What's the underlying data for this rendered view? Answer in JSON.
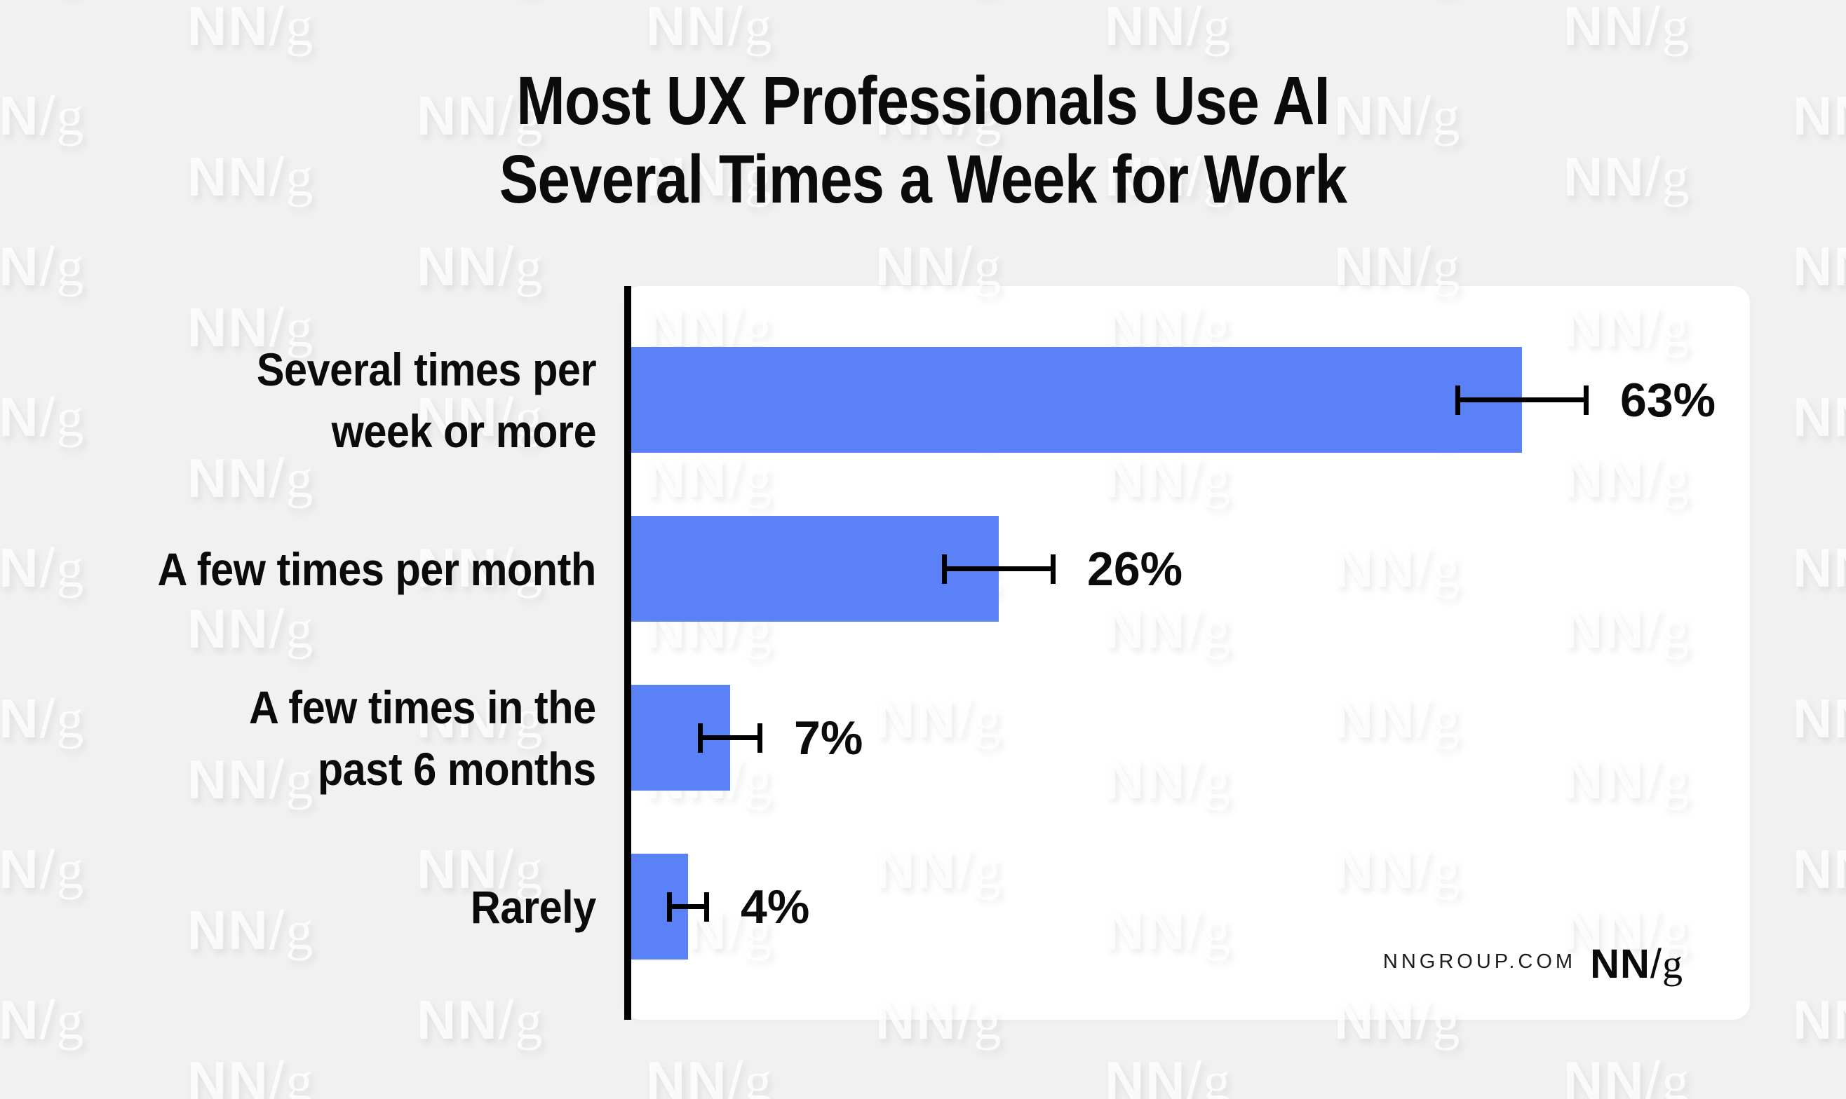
{
  "title": {
    "line1": "Most UX Professionals Use AI",
    "line2": "Several Times a Week for Work"
  },
  "watermark": {
    "nn": "NN",
    "slash": "/",
    "g": "g"
  },
  "footer": {
    "site": "NNGROUP.COM",
    "logo_nn": "NN",
    "logo_slash": "/",
    "logo_g": "g"
  },
  "colors": {
    "background": "#f1f1f2",
    "panel": "#ffffff",
    "bar": "#5b81f7",
    "axis": "#000000",
    "text": "#0b0b0c"
  },
  "chart_data": {
    "type": "bar",
    "orientation": "horizontal",
    "title": "Most UX Professionals Use AI Several Times a Week for Work",
    "categories": [
      "Several times per week or more",
      "A few times per month",
      "A few times in the past 6 months",
      "Rarely"
    ],
    "label_lines": [
      [
        "Several times per",
        "week or more"
      ],
      [
        "A few times per month"
      ],
      [
        "A few times in the",
        "past 6 months"
      ],
      [
        "Rarely"
      ]
    ],
    "values": [
      63,
      26,
      7,
      4
    ],
    "value_labels": [
      "63%",
      "26%",
      "7%",
      "4%"
    ],
    "error_margins_pct": [
      4.7,
      4.0,
      2.3,
      1.5
    ],
    "unit": "%",
    "xlabel": "",
    "ylabel": "",
    "xlim": [
      0,
      79.5
    ],
    "grid": false,
    "error_bars": true,
    "legend": null
  }
}
